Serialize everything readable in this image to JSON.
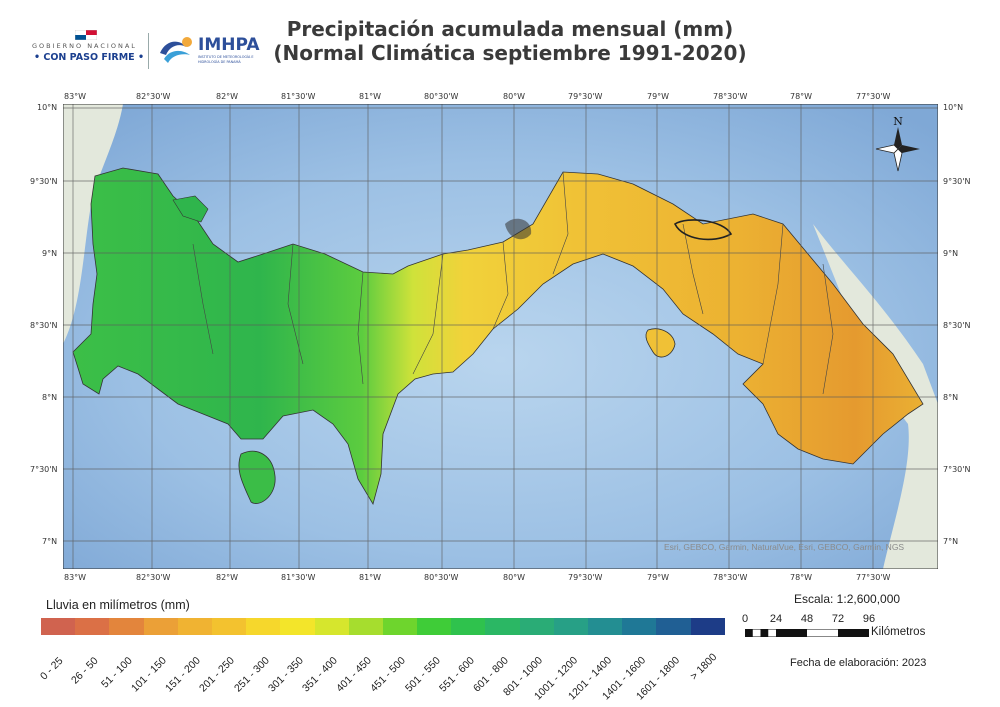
{
  "header": {
    "gov_logo": {
      "top": "GOBIERNO NACIONAL",
      "bottom": "• CON PASO FIRME •"
    },
    "imhpa_logo": {
      "name": "IMHPA",
      "subtitle": "Instituto de Meteorología e Hidrología de Panamá"
    },
    "title_line1": "Precipitación acumulada mensual (mm)",
    "title_line2": "(Normal Climática septiembre 1991-2020)"
  },
  "map": {
    "longitude_ticks": [
      "83°W",
      "82°30'W",
      "82°W",
      "81°30'W",
      "81°W",
      "80°30'W",
      "80°W",
      "79°30'W",
      "79°W",
      "78°30'W",
      "78°W",
      "77°30'W"
    ],
    "latitude_ticks": [
      "10°N",
      "9°30'N",
      "9°N",
      "8°30'N",
      "8°N",
      "7°30'N",
      "7°N"
    ],
    "attribution": "Esri, GEBCO, Garmin, NaturalVue, Esri, GEBCO, Garmin, NGS",
    "north_arrow_label": "N",
    "colors": {
      "ocean": "#a9c9e8",
      "ocean_deep": "#7fa8d6",
      "neighbor_land": "#e3e8dc",
      "green_high": "#2fbf4a",
      "green_mid": "#7fd04a",
      "yellow": "#f2d23a",
      "orange": "#e9a62a"
    }
  },
  "legend": {
    "title": "Lluvia en milímetros (mm)",
    "classes": [
      {
        "label": "0 - 25",
        "color": "#d0634f"
      },
      {
        "label": "26 - 50",
        "color": "#db7046"
      },
      {
        "label": "51 - 100",
        "color": "#e3853c"
      },
      {
        "label": "101 - 150",
        "color": "#eba037"
      },
      {
        "label": "151 - 200",
        "color": "#f0b332"
      },
      {
        "label": "201 - 250",
        "color": "#f3c22f"
      },
      {
        "label": "251 - 300",
        "color": "#f6d72c"
      },
      {
        "label": "301 - 350",
        "color": "#f3e52a"
      },
      {
        "label": "351 - 400",
        "color": "#d6e62d"
      },
      {
        "label": "401 - 450",
        "color": "#a6dd2e"
      },
      {
        "label": "451 - 500",
        "color": "#6ed52d"
      },
      {
        "label": "501 - 550",
        "color": "#3fcc38"
      },
      {
        "label": "551 - 600",
        "color": "#2fc24d"
      },
      {
        "label": "601 - 800",
        "color": "#2bb764"
      },
      {
        "label": "801 - 1000",
        "color": "#2aac76"
      },
      {
        "label": "1001 - 1200",
        "color": "#27a086"
      },
      {
        "label": "1201 - 1400",
        "color": "#238e92"
      },
      {
        "label": "1401 - 1600",
        "color": "#1f7896"
      },
      {
        "label": "1601 - 1800",
        "color": "#205f94"
      },
      {
        "label": "> 1800",
        "color": "#1d3c87"
      }
    ]
  },
  "scale": {
    "text": "Escala: 1:2,600,000",
    "ticks": [
      "0",
      "24",
      "48",
      "72",
      "96"
    ],
    "unit": "Kilómetros"
  },
  "date": "Fecha de elaboración: 2023"
}
